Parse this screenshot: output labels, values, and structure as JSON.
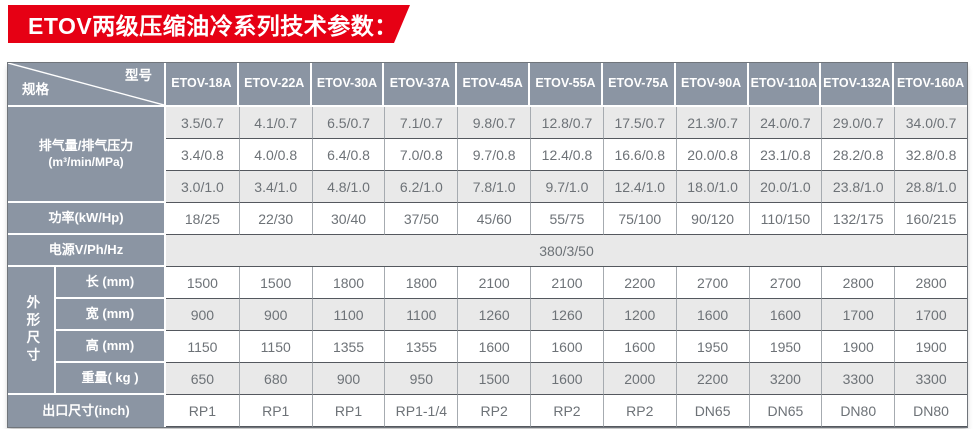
{
  "banner": {
    "title": "ETOV两级压缩油冷系列技术参数："
  },
  "corner": {
    "top_right": "型号",
    "bottom_left": "规格"
  },
  "models": [
    "ETOV-18A",
    "ETOV-22A",
    "ETOV-30A",
    "ETOV-37A",
    "ETOV-45A",
    "ETOV-55A",
    "ETOV-75A",
    "ETOV-90A",
    "ETOV-110A",
    "ETOV-132A",
    "ETOV-160A"
  ],
  "sections": {
    "exhaust": {
      "label": "排气量/排气压力",
      "sublabel": "(m³/min/MPa)",
      "rows": [
        [
          "3.5/0.7",
          "4.1/0.7",
          "6.5/0.7",
          "7.1/0.7",
          "9.8/0.7",
          "12.8/0.7",
          "17.5/0.7",
          "21.3/0.7",
          "24.0/0.7",
          "29.0/0.7",
          "34.0/0.7"
        ],
        [
          "3.4/0.8",
          "4.0/0.8",
          "6.4/0.8",
          "7.0/0.8",
          "9.7/0.8",
          "12.4/0.8",
          "16.6/0.8",
          "20.0/0.8",
          "23.1/0.8",
          "28.2/0.8",
          "32.8/0.8"
        ],
        [
          "3.0/1.0",
          "3.4/1.0",
          "4.8/1.0",
          "6.2/1.0",
          "7.8/1.0",
          "9.7/1.0",
          "12.4/1.0",
          "18.0/1.0",
          "20.0/1.0",
          "23.8/1.0",
          "28.8/1.0"
        ]
      ]
    },
    "power": {
      "label": "功率(kW/Hp)",
      "values": [
        "18/25",
        "22/30",
        "30/40",
        "37/50",
        "45/60",
        "55/75",
        "75/100",
        "90/120",
        "110/150",
        "132/175",
        "160/215"
      ]
    },
    "power_supply": {
      "label": "电源V/Ph/Hz",
      "value": "380/3/50"
    },
    "dimensions": {
      "group_label": "外形尺寸",
      "rows": [
        {
          "label": "长 (mm)",
          "values": [
            "1500",
            "1500",
            "1800",
            "1800",
            "2100",
            "2100",
            "2200",
            "2700",
            "2700",
            "2800",
            "2800"
          ]
        },
        {
          "label": "宽 (mm)",
          "values": [
            "900",
            "900",
            "1100",
            "1100",
            "1260",
            "1260",
            "1200",
            "1600",
            "1600",
            "1700",
            "1700"
          ]
        },
        {
          "label": "高 (mm)",
          "values": [
            "1150",
            "1150",
            "1355",
            "1355",
            "1600",
            "1600",
            "1600",
            "1950",
            "1950",
            "1900",
            "1900"
          ]
        },
        {
          "label": "重量( kg )",
          "values": [
            "650",
            "680",
            "900",
            "950",
            "1500",
            "1600",
            "2000",
            "2200",
            "3200",
            "3300",
            "3300"
          ]
        }
      ]
    },
    "outlet": {
      "label": "出口尺寸(inch)",
      "values": [
        "RP1",
        "RP1",
        "RP1",
        "RP1-1/4",
        "RP2",
        "RP2",
        "RP2",
        "DN65",
        "DN65",
        "DN80",
        "DN80"
      ]
    }
  },
  "colors": {
    "accent_red": "#e60014",
    "header_slate": "#8b95a3",
    "row_shade": "#e9e9e9",
    "data_text": "#6d7277"
  }
}
